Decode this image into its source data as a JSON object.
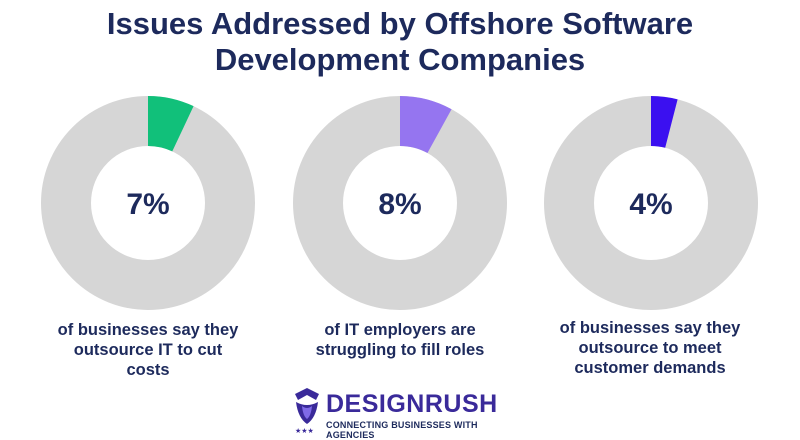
{
  "title": {
    "line1": "Issues Addressed by Offshore Software",
    "line2": "Development Companies"
  },
  "chart_data": [
    {
      "type": "pie",
      "variant": "donut",
      "value": 7,
      "label": "7%",
      "caption": [
        "of businesses say they",
        "outsource IT to cut",
        "costs"
      ],
      "color": "#11c07a",
      "remainder_color": "#d6d6d6"
    },
    {
      "type": "pie",
      "variant": "donut",
      "value": 8,
      "label": "8%",
      "caption": [
        "of IT employers are",
        "struggling to fill roles"
      ],
      "color": "#9575f0",
      "remainder_color": "#d6d6d6"
    },
    {
      "type": "pie",
      "variant": "donut",
      "value": 4,
      "label": "4%",
      "caption": [
        "of businesses say they",
        "outsource to meet",
        "customer demands"
      ],
      "color": "#3b10f0",
      "remainder_color": "#d6d6d6"
    }
  ],
  "brand": {
    "name": "DESIGNRUSH",
    "tagline": "CONNECTING BUSINESSES WITH AGENCIES",
    "icon": "designrush-logo-icon",
    "color": "#3a2a9a"
  },
  "colors": {
    "text": "#1d2a5c",
    "background": "#ffffff"
  }
}
